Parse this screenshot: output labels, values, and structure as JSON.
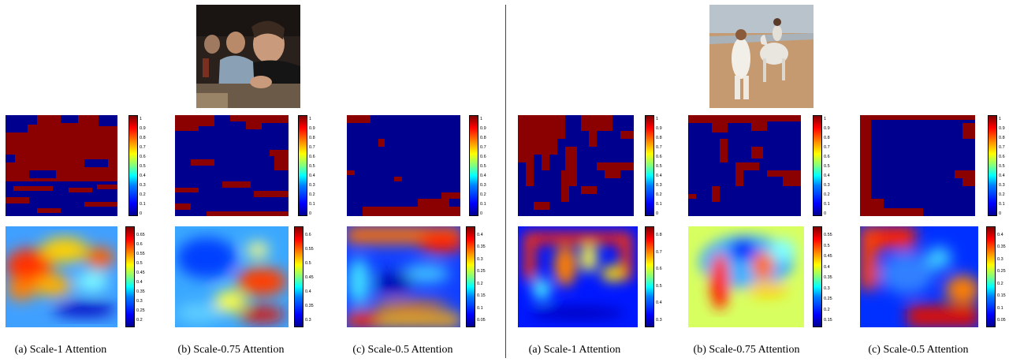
{
  "panels": [
    {
      "captions": [
        "(a) Scale-1 Attention",
        "(b) Scale-0.75 Attention",
        "(c) Scale-0.5 Attention"
      ],
      "binary_ticks": [
        "1",
        "0.9",
        "0.8",
        "0.7",
        "0.6",
        "0.5",
        "0.4",
        "0.3",
        "0.2",
        "0.1",
        "0"
      ],
      "continuous_ticks": [
        [
          "0.65",
          "0.6",
          "0.55",
          "0.5",
          "0.45",
          "0.4",
          "0.35",
          "0.3",
          "0.25",
          "0.2"
        ],
        [
          "0.6",
          "0.55",
          "0.5",
          "0.45",
          "0.4",
          "0.35",
          "0.3"
        ],
        [
          "0.4",
          "0.35",
          "0.3",
          "0.25",
          "0.2",
          "0.15",
          "0.1",
          "0.05"
        ]
      ]
    },
    {
      "captions": [
        "(a) Scale-1 Attention",
        "(b) Scale-0.75 Attention",
        "(c) Scale-0.5 Attention"
      ],
      "binary_ticks": [
        "1",
        "0.9",
        "0.8",
        "0.7",
        "0.6",
        "0.5",
        "0.4",
        "0.3",
        "0.2",
        "0.1",
        "0"
      ],
      "continuous_ticks": [
        [
          "0.8",
          "0.7",
          "0.6",
          "0.5",
          "0.4",
          "0.3"
        ],
        [
          "0.55",
          "0.5",
          "0.45",
          "0.4",
          "0.35",
          "0.3",
          "0.25",
          "0.2",
          "0.15"
        ],
        [
          "0.4",
          "0.35",
          "0.3",
          "0.25",
          "0.2",
          "0.15",
          "0.1",
          "0.05"
        ]
      ]
    }
  ],
  "colors": {
    "mask_on": "#8b0000",
    "mask_off": "#00008f"
  }
}
